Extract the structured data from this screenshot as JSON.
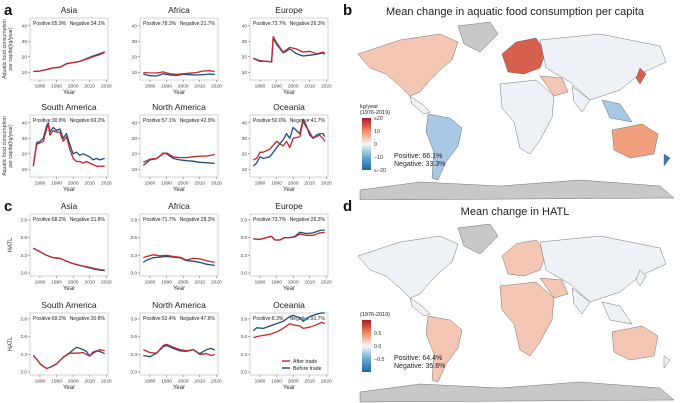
{
  "panels": {
    "a": {
      "letter": "a"
    },
    "b": {
      "letter": "b",
      "title": "Mean change in aquatic food consumption per capita"
    },
    "c": {
      "letter": "c"
    },
    "d": {
      "letter": "d",
      "title": "Mean change in HATL"
    }
  },
  "colors": {
    "after_trade": "#c0282d",
    "before_trade": "#1f4e79",
    "land_missing": "#c8c8c8",
    "pos_strong": "#d6604d",
    "pos_light": "#f4c7b5",
    "neutral": "#eef1f5",
    "neg_light": "#a9c8e6",
    "neg_strong": "#3a78b5"
  },
  "chart_data": [
    {
      "id": "a-asia",
      "type": "line",
      "group": "a",
      "title": "Asia",
      "ylabel": "Aquatic food consumption per capita(kg/year)",
      "xlabel": "Year",
      "xlim": [
        1974,
        2021
      ],
      "ylim": [
        5,
        45
      ],
      "xticks": [
        1980,
        1990,
        2000,
        2010,
        2020
      ],
      "yticks": [
        10,
        20,
        30,
        40
      ],
      "ytick_labels": [
        "10",
        "20",
        "30",
        "40"
      ],
      "positive": "Positive:65.9%",
      "negative": "Negative:34.1%",
      "x": [
        1976,
        1980,
        1984,
        1988,
        1992,
        1996,
        2000,
        2004,
        2008,
        2012,
        2016,
        2019
      ],
      "series": [
        {
          "name": "After trade",
          "values": [
            10.5,
            10.8,
            11.8,
            12.8,
            13.2,
            15.5,
            16.2,
            17.0,
            18.5,
            20.0,
            21.4,
            22.8
          ]
        },
        {
          "name": "Before trade",
          "values": [
            10.5,
            10.8,
            11.8,
            12.8,
            13.2,
            15.5,
            16.2,
            17.0,
            18.8,
            20.5,
            22.0,
            23.2
          ]
        }
      ]
    },
    {
      "id": "a-africa",
      "type": "line",
      "group": "a",
      "title": "Africa",
      "ylabel": "",
      "xlabel": "Year",
      "xlim": [
        1974,
        2021
      ],
      "ylim": [
        5,
        45
      ],
      "xticks": [
        1980,
        1990,
        2000,
        2010,
        2020
      ],
      "yticks": [
        10,
        20,
        30,
        40
      ],
      "ytick_labels": [
        "10",
        "20",
        "30",
        "40"
      ],
      "positive": "Positive:78.3%",
      "negative": "Negative:21.7%",
      "x": [
        1976,
        1980,
        1984,
        1988,
        1992,
        1996,
        2000,
        2004,
        2008,
        2012,
        2016,
        2019
      ],
      "series": [
        {
          "name": "After trade",
          "values": [
            9.8,
            9.6,
            9.5,
            10.2,
            9.0,
            8.6,
            9.0,
            9.4,
            9.8,
            10.8,
            11.0,
            10.4
          ]
        },
        {
          "name": "Before trade",
          "values": [
            8.8,
            7.8,
            7.6,
            9.0,
            8.2,
            8.0,
            8.6,
            8.4,
            8.2,
            8.4,
            8.8,
            8.6
          ]
        }
      ]
    },
    {
      "id": "a-europe",
      "type": "line",
      "group": "a",
      "title": "Europe",
      "ylabel": "",
      "xlabel": "Year",
      "xlim": [
        1974,
        2021
      ],
      "ylim": [
        5,
        45
      ],
      "xticks": [
        1980,
        1990,
        2000,
        2010,
        2020
      ],
      "yticks": [
        10,
        20,
        30,
        40
      ],
      "ytick_labels": [
        "10",
        "20",
        "30",
        "40"
      ],
      "positive": "Positive:73.7%",
      "negative": "Negative:26.3%",
      "x": [
        1976,
        1980,
        1984,
        1987,
        1988,
        1990,
        1994,
        1998,
        2002,
        2006,
        2010,
        2014,
        2018,
        2019
      ],
      "series": [
        {
          "name": "After trade",
          "values": [
            19.0,
            17.5,
            17.0,
            16.8,
            33.0,
            29.0,
            23.0,
            26.0,
            25.0,
            23.0,
            23.5,
            22.0,
            23.0,
            22.5
          ]
        },
        {
          "name": "Before trade",
          "values": [
            19.0,
            17.0,
            17.2,
            16.6,
            32.0,
            28.0,
            22.5,
            25.0,
            22.0,
            20.5,
            21.0,
            21.5,
            22.5,
            21.5
          ]
        }
      ]
    },
    {
      "id": "a-south-america",
      "type": "line",
      "group": "a",
      "title": "South America",
      "ylabel": "Aquatic food consumption per capita(kg/year)",
      "xlabel": "Year",
      "xlim": [
        1974,
        2021
      ],
      "ylim": [
        5,
        45
      ],
      "xticks": [
        1980,
        1990,
        2000,
        2010,
        2020
      ],
      "yticks": [
        10,
        20,
        30,
        40
      ],
      "ytick_labels": [
        "10",
        "20",
        "30",
        "40"
      ],
      "positive": "Positive:30.8%",
      "negative": "Negative:69.2%",
      "x": [
        1976,
        1978,
        1980,
        1982,
        1984,
        1985,
        1986,
        1988,
        1990,
        1992,
        1994,
        1996,
        1998,
        2000,
        2002,
        2004,
        2006,
        2008,
        2010,
        2012,
        2014,
        2016,
        2019
      ],
      "series": [
        {
          "name": "After trade",
          "values": [
            12,
            26,
            27,
            28,
            36,
            39,
            32,
            35,
            34,
            34,
            28,
            31,
            23,
            17,
            15,
            15,
            14,
            15,
            14,
            13,
            12,
            12,
            12
          ]
        },
        {
          "name": "Before trade",
          "values": [
            12,
            27,
            28,
            30,
            38,
            40,
            34,
            37,
            35,
            36,
            30,
            33,
            26,
            20,
            21,
            19,
            20,
            19,
            18,
            16,
            17,
            16,
            17
          ]
        }
      ]
    },
    {
      "id": "a-north-america",
      "type": "line",
      "group": "a",
      "title": "North America",
      "ylabel": "",
      "xlabel": "Year",
      "xlim": [
        1974,
        2021
      ],
      "ylim": [
        5,
        45
      ],
      "xticks": [
        1980,
        1990,
        2000,
        2010,
        2020
      ],
      "yticks": [
        10,
        20,
        30,
        40
      ],
      "ytick_labels": [
        "10",
        "20",
        "30",
        "40"
      ],
      "positive": "Positive:57.1%",
      "negative": "Negative:42.9%",
      "x": [
        1976,
        1980,
        1984,
        1988,
        1990,
        1994,
        1998,
        2002,
        2006,
        2010,
        2014,
        2019
      ],
      "series": [
        {
          "name": "After trade",
          "values": [
            14.5,
            16.5,
            17.0,
            20.0,
            20.5,
            18.0,
            17.5,
            17.5,
            18.0,
            18.5,
            18.5,
            19.5
          ]
        },
        {
          "name": "Before trade",
          "values": [
            12.5,
            16.0,
            16.8,
            20.5,
            20.0,
            17.0,
            16.0,
            15.5,
            15.2,
            14.5,
            14.2,
            13.8
          ]
        }
      ]
    },
    {
      "id": "a-oceania",
      "type": "line",
      "group": "a",
      "title": "Oceania",
      "ylabel": "",
      "xlabel": "Year",
      "xlim": [
        1974,
        2021
      ],
      "ylim": [
        5,
        45
      ],
      "xticks": [
        1980,
        1990,
        2000,
        2010,
        2020
      ],
      "yticks": [
        10,
        20,
        30,
        40
      ],
      "ytick_labels": [
        "10",
        "20",
        "30",
        "40"
      ],
      "positive": "Positive:50.0%",
      "negative": "Negative:41.7%",
      "x": [
        1976,
        1978,
        1980,
        1982,
        1986,
        1990,
        1994,
        1996,
        1998,
        2000,
        2004,
        2006,
        2008,
        2010,
        2012,
        2014,
        2016,
        2018,
        2019
      ],
      "series": [
        {
          "name": "After trade",
          "values": [
            16,
            17,
            21,
            21,
            23,
            28,
            25,
            28,
            24,
            30,
            31,
            41,
            37,
            34,
            30,
            31,
            32,
            30,
            28
          ]
        },
        {
          "name": "Before trade",
          "values": [
            12,
            14,
            18,
            17,
            18,
            24,
            29,
            33,
            30,
            37,
            33,
            42,
            38,
            32,
            30,
            32,
            33,
            33,
            31
          ]
        }
      ]
    },
    {
      "id": "c-asia",
      "type": "line",
      "group": "c",
      "title": "Asia",
      "ylabel": "HATL",
      "xlabel": "Year",
      "xlim": [
        1974,
        2021
      ],
      "ylim": [
        2.95,
        4.0
      ],
      "xticks": [
        1980,
        1990,
        2000,
        2010,
        2020
      ],
      "yticks": [
        3.0,
        3.3,
        3.6,
        3.9
      ],
      "ytick_labels": [
        "3.0",
        "3.3",
        "3.6",
        "3.9"
      ],
      "positive": "Positive:68.2%",
      "negative": "Negative:31.8%",
      "x": [
        1976,
        1980,
        1984,
        1988,
        1992,
        1996,
        2000,
        2004,
        2008,
        2012,
        2016,
        2019
      ],
      "series": [
        {
          "name": "After trade",
          "values": [
            3.42,
            3.36,
            3.3,
            3.26,
            3.25,
            3.2,
            3.16,
            3.13,
            3.11,
            3.08,
            3.06,
            3.05
          ]
        },
        {
          "name": "Before trade",
          "values": [
            3.42,
            3.36,
            3.3,
            3.26,
            3.25,
            3.2,
            3.16,
            3.13,
            3.1,
            3.07,
            3.05,
            3.04
          ]
        }
      ]
    },
    {
      "id": "c-africa",
      "type": "line",
      "group": "c",
      "title": "Africa",
      "ylabel": "",
      "xlabel": "Year",
      "xlim": [
        1974,
        2021
      ],
      "ylim": [
        2.95,
        4.0
      ],
      "xticks": [
        1980,
        1990,
        2000,
        2010,
        2020
      ],
      "yticks": [
        3.0,
        3.3,
        3.6,
        3.9
      ],
      "ytick_labels": [
        "3.0",
        "3.3",
        "3.6",
        "3.9"
      ],
      "positive": "Positive:71.7%",
      "negative": "Negative:28.3%",
      "x": [
        1976,
        1978,
        1982,
        1986,
        1990,
        1994,
        1998,
        2002,
        2006,
        2010,
        2014,
        2019
      ],
      "series": [
        {
          "name": "After trade",
          "values": [
            3.26,
            3.28,
            3.31,
            3.29,
            3.3,
            3.28,
            3.27,
            3.22,
            3.25,
            3.24,
            3.21,
            3.18
          ]
        },
        {
          "name": "Before trade",
          "values": [
            3.18,
            3.22,
            3.26,
            3.27,
            3.28,
            3.27,
            3.26,
            3.21,
            3.2,
            3.18,
            3.15,
            3.13
          ]
        }
      ]
    },
    {
      "id": "c-europe",
      "type": "line",
      "group": "c",
      "title": "Europe",
      "ylabel": "",
      "xlabel": "Year",
      "xlim": [
        1974,
        2021
      ],
      "ylim": [
        2.95,
        4.0
      ],
      "xticks": [
        1980,
        1990,
        2000,
        2010,
        2020
      ],
      "yticks": [
        3.0,
        3.3,
        3.6,
        3.9
      ],
      "ytick_labels": [
        "3.0",
        "3.3",
        "3.6",
        "3.9"
      ],
      "positive": "Positive:73.7%",
      "negative": "Negative:26.3%",
      "x": [
        1976,
        1980,
        1984,
        1987,
        1989,
        1992,
        1995,
        1998,
        2001,
        2004,
        2008,
        2012,
        2016,
        2019
      ],
      "series": [
        {
          "name": "After trade",
          "values": [
            3.58,
            3.57,
            3.6,
            3.62,
            3.56,
            3.56,
            3.6,
            3.6,
            3.61,
            3.66,
            3.64,
            3.64,
            3.68,
            3.69
          ]
        },
        {
          "name": "Before trade",
          "values": [
            3.58,
            3.57,
            3.6,
            3.62,
            3.56,
            3.56,
            3.6,
            3.6,
            3.62,
            3.69,
            3.67,
            3.68,
            3.72,
            3.73
          ]
        }
      ]
    },
    {
      "id": "c-south-america",
      "type": "line",
      "group": "c",
      "title": "South America",
      "ylabel": "HATL",
      "xlabel": "Year",
      "xlim": [
        1974,
        2021
      ],
      "ylim": [
        2.95,
        4.0
      ],
      "xticks": [
        1980,
        1990,
        2000,
        2010,
        2020
      ],
      "yticks": [
        3.0,
        3.3,
        3.6,
        3.9
      ],
      "ytick_labels": [
        "3.0",
        "3.3",
        "3.6",
        "3.9"
      ],
      "positive": "Positive:69.2%",
      "negative": "Negative:30.8%",
      "x": [
        1976,
        1978,
        1980,
        1984,
        1986,
        1990,
        1994,
        1998,
        2002,
        2006,
        2008,
        2010,
        2012,
        2014,
        2016,
        2019
      ],
      "series": [
        {
          "name": "After trade",
          "values": [
            3.28,
            3.22,
            3.14,
            3.06,
            3.08,
            3.14,
            3.25,
            3.32,
            3.32,
            3.33,
            3.3,
            3.27,
            3.32,
            3.35,
            3.38,
            3.36
          ]
        },
        {
          "name": "Before trade",
          "values": [
            3.28,
            3.22,
            3.14,
            3.06,
            3.08,
            3.14,
            3.25,
            3.33,
            3.42,
            3.38,
            3.35,
            3.27,
            3.34,
            3.36,
            3.35,
            3.31
          ]
        }
      ]
    },
    {
      "id": "c-north-america",
      "type": "line",
      "group": "c",
      "title": "North America",
      "ylabel": "",
      "xlabel": "Year",
      "xlim": [
        1974,
        2021
      ],
      "ylim": [
        2.95,
        4.0
      ],
      "xticks": [
        1980,
        1990,
        2000,
        2010,
        2020
      ],
      "yticks": [
        3.0,
        3.3,
        3.6,
        3.9
      ],
      "ytick_labels": [
        "3.0",
        "3.3",
        "3.6",
        "3.9"
      ],
      "positive": "Positive:52.4%",
      "negative": "Negative:47.6%",
      "x": [
        1976,
        1980,
        1984,
        1988,
        1990,
        1994,
        1998,
        2002,
        2006,
        2010,
        2014,
        2017,
        2019
      ],
      "series": [
        {
          "name": "After trade",
          "values": [
            3.38,
            3.33,
            3.32,
            3.45,
            3.47,
            3.42,
            3.38,
            3.36,
            3.38,
            3.3,
            3.31,
            3.28,
            3.3
          ]
        },
        {
          "name": "Before trade",
          "values": [
            3.28,
            3.26,
            3.32,
            3.43,
            3.45,
            3.4,
            3.36,
            3.35,
            3.38,
            3.31,
            3.38,
            3.4,
            3.37
          ]
        }
      ]
    },
    {
      "id": "c-oceania",
      "type": "line",
      "group": "c",
      "title": "Oceania",
      "ylabel": "",
      "xlabel": "Year",
      "xlim": [
        1974,
        2021
      ],
      "ylim": [
        2.95,
        4.0
      ],
      "xticks": [
        1980,
        1990,
        2000,
        2010,
        2020
      ],
      "yticks": [
        3.0,
        3.3,
        3.6,
        3.9
      ],
      "ytick_labels": [
        "3.0",
        "3.3",
        "3.6",
        "3.9"
      ],
      "positive": "Positive:8.3%",
      "negative": "Negative:91.7%",
      "legend": [
        "After trade",
        "Before trade"
      ],
      "legend_position": "bottom-right",
      "x": [
        1976,
        1978,
        1982,
        1986,
        1990,
        1994,
        1998,
        2000,
        2004,
        2006,
        2010,
        2014,
        2017,
        2019
      ],
      "series": [
        {
          "name": "After trade",
          "values": [
            3.58,
            3.6,
            3.62,
            3.64,
            3.68,
            3.74,
            3.82,
            3.8,
            3.78,
            3.74,
            3.76,
            3.8,
            3.84,
            3.82
          ]
        },
        {
          "name": "Before trade",
          "values": [
            3.7,
            3.75,
            3.74,
            3.78,
            3.82,
            3.86,
            3.94,
            3.96,
            3.92,
            3.86,
            3.94,
            3.98,
            4.0,
            4.0
          ]
        }
      ]
    },
    {
      "id": "b-map",
      "type": "heatmap",
      "title": "Mean change in aquatic food consumption per capita",
      "legend_title": "kg/year",
      "legend_subtitle": "(1976-2019)",
      "legend_ticks": [
        "≥20",
        "10",
        "0",
        "−10",
        "≤−20"
      ],
      "legend_range": [
        -20,
        20
      ],
      "positive": "Positive: 66.1%",
      "negative": "Negative: 33.3%",
      "legend_position": "bottom-left"
    },
    {
      "id": "d-map",
      "type": "heatmap",
      "title": "Mean change in HATL",
      "legend_title": "",
      "legend_subtitle": "(1976-2019)",
      "legend_ticks": [
        "0.5",
        "0.0",
        "−0.5"
      ],
      "legend_range": [
        -0.75,
        0.75
      ],
      "positive": "Positive: 64.4%",
      "negative": "Negative: 35.6%",
      "legend_position": "bottom-left"
    }
  ]
}
